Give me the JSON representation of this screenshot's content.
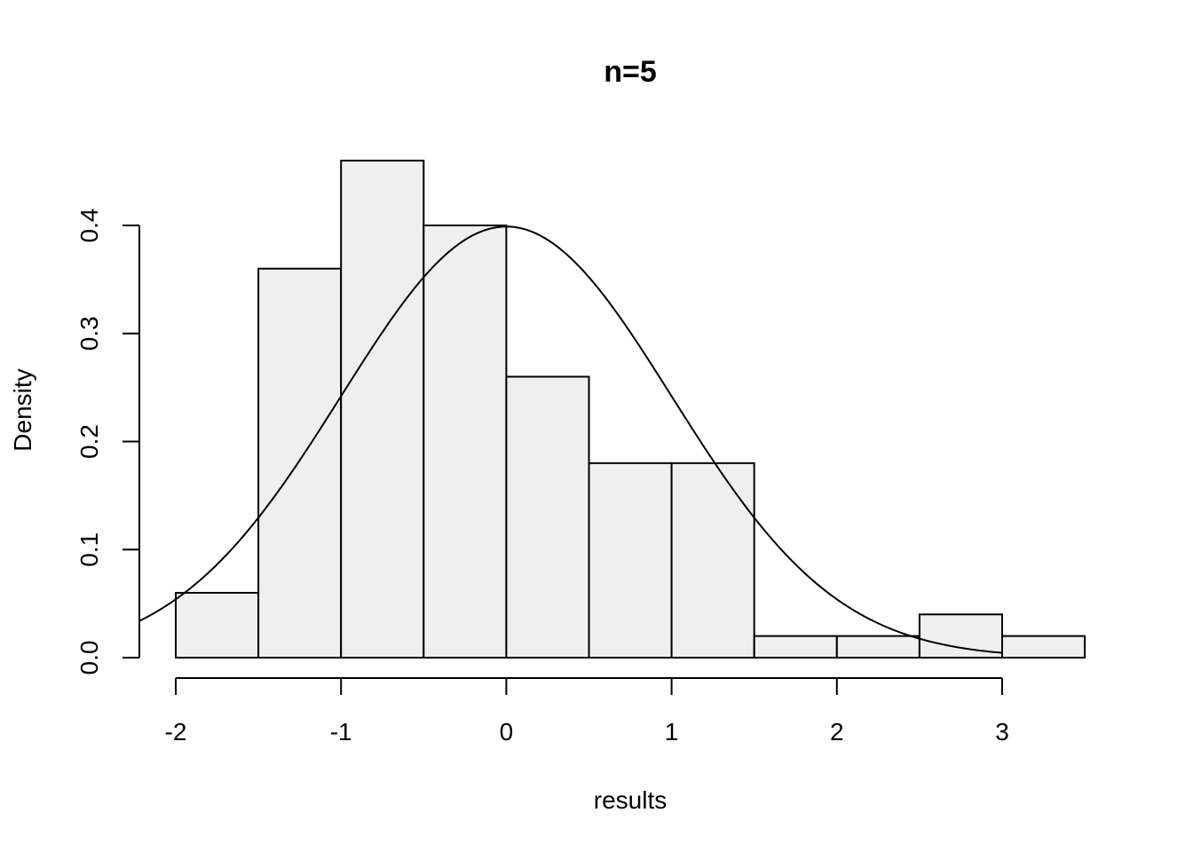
{
  "chart_data": {
    "type": "bar",
    "subtype": "histogram",
    "title": "n=5",
    "xlabel": "results",
    "ylabel": "Density",
    "bins": [
      {
        "from": -2.0,
        "to": -1.5,
        "density": 0.06
      },
      {
        "from": -1.5,
        "to": -1.0,
        "density": 0.36
      },
      {
        "from": -1.0,
        "to": -0.5,
        "density": 0.46
      },
      {
        "from": -0.5,
        "to": 0.0,
        "density": 0.4
      },
      {
        "from": 0.0,
        "to": 0.5,
        "density": 0.26
      },
      {
        "from": 0.5,
        "to": 1.0,
        "density": 0.18
      },
      {
        "from": 1.0,
        "to": 1.5,
        "density": 0.18
      },
      {
        "from": 1.5,
        "to": 2.0,
        "density": 0.02
      },
      {
        "from": 2.0,
        "to": 2.5,
        "density": 0.02
      },
      {
        "from": 2.5,
        "to": 3.0,
        "density": 0.04
      },
      {
        "from": 3.0,
        "to": 3.5,
        "density": 0.02
      }
    ],
    "categories": [
      "-2–-1.5",
      "-1.5–-1",
      "-1–-0.5",
      "-0.5–0",
      "0–0.5",
      "0.5–1",
      "1–1.5",
      "1.5–2",
      "2–2.5",
      "2.5–3",
      "3–3.5"
    ],
    "values": [
      0.06,
      0.36,
      0.46,
      0.4,
      0.26,
      0.18,
      0.18,
      0.02,
      0.02,
      0.04,
      0.02
    ],
    "overlay_curve": {
      "type": "line",
      "name": "standard normal density",
      "function": "dnorm(x, 0, 1)",
      "x_range": [
        -2.22,
        3.0
      ]
    },
    "xticks": [
      -2,
      -1,
      0,
      1,
      2,
      3
    ],
    "xtick_labels": [
      "-2",
      "-1",
      "0",
      "1",
      "2",
      "3"
    ],
    "yticks": [
      0.0,
      0.1,
      0.2,
      0.3,
      0.4
    ],
    "ytick_labels": [
      "0.0",
      "0.1",
      "0.2",
      "0.3",
      "0.4"
    ],
    "xlim": [
      -2.22,
      3.5
    ],
    "ylim": [
      0,
      0.46
    ],
    "grid": false,
    "legend": null,
    "colors": {
      "bar_fill": "#efefef",
      "bar_stroke": "#000000",
      "curve": "#000000"
    }
  }
}
